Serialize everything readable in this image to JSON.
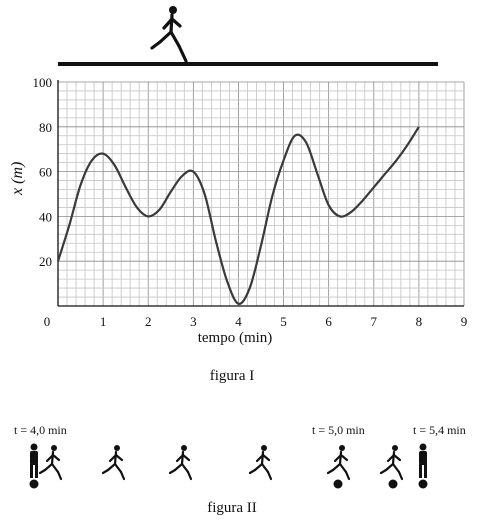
{
  "figure1": {
    "caption": "figura I",
    "chart_data": {
      "type": "line",
      "ylabel": "x (m)",
      "xlabel": "tempo (min)",
      "xlim": [
        0,
        9
      ],
      "ylim": [
        0,
        100
      ],
      "x_ticks": [
        "0",
        "1",
        "2",
        "3",
        "4",
        "5",
        "6",
        "7",
        "8",
        "9"
      ],
      "y_ticks": [
        "20",
        "40",
        "60",
        "80",
        "100"
      ],
      "grid": true,
      "series": [
        {
          "x": [
            0,
            0.25,
            0.5,
            0.75,
            1,
            1.25,
            1.5,
            1.75,
            2,
            2.25,
            2.5,
            2.75,
            3,
            3.25,
            3.5,
            3.75,
            4,
            4.25,
            4.5,
            4.75,
            5,
            5.25,
            5.5,
            5.75,
            6,
            6.25,
            6.5,
            6.75,
            7,
            7.25,
            7.5,
            7.75,
            8
          ],
          "y": [
            20,
            36,
            54,
            65,
            68,
            63,
            53,
            44,
            40,
            43,
            51,
            58,
            60,
            50,
            29,
            11,
            1,
            8,
            27,
            49,
            65,
            76,
            73,
            59,
            45,
            40,
            42,
            47,
            53,
            59,
            65,
            72,
            80
          ]
        }
      ]
    }
  },
  "figure2": {
    "caption": "figura II",
    "labels": [
      "t = 4,0 min",
      "t = 5,0 min",
      "t = 5,4 min"
    ]
  }
}
